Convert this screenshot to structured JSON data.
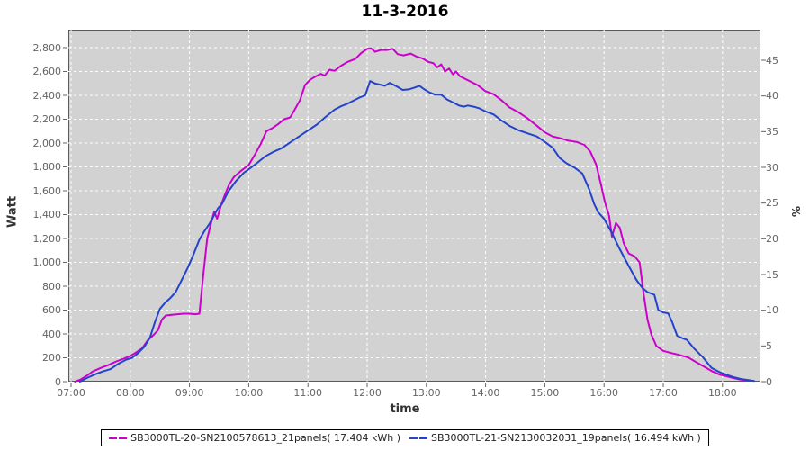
{
  "title": "11-3-2016",
  "axes": {
    "left": {
      "title": "Watt",
      "tick_values": [
        0,
        200,
        400,
        600,
        800,
        1000,
        1200,
        1400,
        1600,
        1800,
        2000,
        2200,
        2400,
        2600,
        2800
      ],
      "tick_labels": [
        "0",
        "200",
        "400",
        "600",
        "800",
        "1,000",
        "1,200",
        "1,400",
        "1,600",
        "1,800",
        "2,000",
        "2,200",
        "2,400",
        "2,600",
        "2,800"
      ]
    },
    "right": {
      "title": "%",
      "tick_values": [
        0,
        5,
        10,
        15,
        20,
        25,
        30,
        35,
        40,
        45
      ],
      "tick_labels": [
        "0",
        "5",
        "10",
        "15",
        "20",
        "25",
        "30",
        "35",
        "40",
        "45"
      ]
    },
    "x": {
      "title": "time",
      "tick_hours": [
        7,
        8,
        9,
        10,
        11,
        12,
        13,
        14,
        15,
        16,
        17,
        18
      ],
      "tick_labels": [
        "07:00",
        "08:00",
        "09:00",
        "10:00",
        "11:00",
        "12:00",
        "13:00",
        "14:00",
        "15:00",
        "16:00",
        "17:00",
        "18:00"
      ]
    }
  },
  "legend": {
    "entries": [
      {
        "label": "SB3000TL-20-SN2100578613_21panels( 17.404 kWh )",
        "color": "#cc00cc"
      },
      {
        "label": "SB3000TL-21-SN2130032031_19panels( 16.494 kWh )",
        "color": "#2343cb"
      }
    ]
  },
  "colors": {
    "plot_background": "#d2d2d2",
    "gridline": "#ffffff",
    "frame": "#5a5a5a",
    "tick_text": "#646464",
    "series_magenta": "#cc00cc",
    "series_blue": "#2343cb"
  },
  "chart_data": {
    "type": "line",
    "title": "11-3-2016",
    "xlabel": "time",
    "ylabel_left": "Watt",
    "ylabel_right": "%",
    "x_range_hours": [
      6.95,
      18.64
    ],
    "ylim_watt": [
      0,
      2950
    ],
    "ylim_percent": [
      0,
      49
    ],
    "grid": "white dashed on gray background",
    "legend_position": "bottom-center",
    "series": [
      {
        "name": "SB3000TL-20-SN2100578613_21panels( 17.404 kWh )",
        "color": "#cc00cc",
        "axis": "left",
        "energy_kwh": 17.404,
        "points": [
          [
            "07:04",
            0
          ],
          [
            "07:10",
            20
          ],
          [
            "07:16",
            50
          ],
          [
            "07:22",
            85
          ],
          [
            "07:30",
            115
          ],
          [
            "07:38",
            140
          ],
          [
            "07:46",
            170
          ],
          [
            "07:54",
            195
          ],
          [
            "08:00",
            215
          ],
          [
            "08:06",
            245
          ],
          [
            "08:12",
            280
          ],
          [
            "08:18",
            350
          ],
          [
            "08:24",
            395
          ],
          [
            "08:28",
            430
          ],
          [
            "08:32",
            520
          ],
          [
            "08:36",
            555
          ],
          [
            "08:42",
            560
          ],
          [
            "08:48",
            565
          ],
          [
            "08:54",
            570
          ],
          [
            "09:00",
            570
          ],
          [
            "09:06",
            565
          ],
          [
            "09:10",
            570
          ],
          [
            "09:14",
            900
          ],
          [
            "09:18",
            1200
          ],
          [
            "09:21",
            1300
          ],
          [
            "09:25",
            1425
          ],
          [
            "09:28",
            1365
          ],
          [
            "09:32",
            1480
          ],
          [
            "09:36",
            1570
          ],
          [
            "09:40",
            1650
          ],
          [
            "09:45",
            1715
          ],
          [
            "09:52",
            1765
          ],
          [
            "10:00",
            1815
          ],
          [
            "10:06",
            1900
          ],
          [
            "10:12",
            1990
          ],
          [
            "10:18",
            2100
          ],
          [
            "10:24",
            2125
          ],
          [
            "10:30",
            2160
          ],
          [
            "10:36",
            2200
          ],
          [
            "10:42",
            2215
          ],
          [
            "10:46",
            2270
          ],
          [
            "10:52",
            2360
          ],
          [
            "10:57",
            2485
          ],
          [
            "11:02",
            2530
          ],
          [
            "11:08",
            2560
          ],
          [
            "11:13",
            2580
          ],
          [
            "11:17",
            2565
          ],
          [
            "11:22",
            2615
          ],
          [
            "11:27",
            2605
          ],
          [
            "11:33",
            2645
          ],
          [
            "11:40",
            2680
          ],
          [
            "11:48",
            2705
          ],
          [
            "11:54",
            2755
          ],
          [
            "12:00",
            2790
          ],
          [
            "12:04",
            2795
          ],
          [
            "12:08",
            2765
          ],
          [
            "12:14",
            2780
          ],
          [
            "12:20",
            2780
          ],
          [
            "12:26",
            2790
          ],
          [
            "12:31",
            2745
          ],
          [
            "12:37",
            2735
          ],
          [
            "12:44",
            2750
          ],
          [
            "12:50",
            2725
          ],
          [
            "12:56",
            2710
          ],
          [
            "13:02",
            2680
          ],
          [
            "13:07",
            2670
          ],
          [
            "13:11",
            2635
          ],
          [
            "13:15",
            2660
          ],
          [
            "13:19",
            2600
          ],
          [
            "13:23",
            2625
          ],
          [
            "13:27",
            2575
          ],
          [
            "13:30",
            2600
          ],
          [
            "13:34",
            2560
          ],
          [
            "13:40",
            2535
          ],
          [
            "13:46",
            2510
          ],
          [
            "13:52",
            2485
          ],
          [
            "14:00",
            2435
          ],
          [
            "14:08",
            2410
          ],
          [
            "14:16",
            2360
          ],
          [
            "14:24",
            2300
          ],
          [
            "14:33",
            2260
          ],
          [
            "14:42",
            2210
          ],
          [
            "14:52",
            2145
          ],
          [
            "15:00",
            2090
          ],
          [
            "15:08",
            2055
          ],
          [
            "15:16",
            2040
          ],
          [
            "15:24",
            2020
          ],
          [
            "15:32",
            2010
          ],
          [
            "15:40",
            1985
          ],
          [
            "15:46",
            1930
          ],
          [
            "15:52",
            1820
          ],
          [
            "15:57",
            1650
          ],
          [
            "16:01",
            1500
          ],
          [
            "16:05",
            1395
          ],
          [
            "16:08",
            1215
          ],
          [
            "16:12",
            1330
          ],
          [
            "16:16",
            1290
          ],
          [
            "16:20",
            1160
          ],
          [
            "16:25",
            1075
          ],
          [
            "16:31",
            1050
          ],
          [
            "16:36",
            1000
          ],
          [
            "16:40",
            740
          ],
          [
            "16:44",
            520
          ],
          [
            "16:48",
            395
          ],
          [
            "16:53",
            300
          ],
          [
            "17:00",
            258
          ],
          [
            "17:08",
            240
          ],
          [
            "17:16",
            225
          ],
          [
            "17:26",
            200
          ],
          [
            "17:34",
            160
          ],
          [
            "17:42",
            122
          ],
          [
            "17:50",
            85
          ],
          [
            "17:57",
            60
          ],
          [
            "18:04",
            45
          ],
          [
            "18:11",
            30
          ],
          [
            "18:18",
            18
          ],
          [
            "18:26",
            8
          ]
        ]
      },
      {
        "name": "SB3000TL-21-SN2130032031_19panels( 16.494 kWh )",
        "color": "#2343cb",
        "axis": "left",
        "energy_kwh": 16.494,
        "points": [
          [
            "07:09",
            0
          ],
          [
            "07:16",
            30
          ],
          [
            "07:24",
            60
          ],
          [
            "07:32",
            85
          ],
          [
            "07:40",
            105
          ],
          [
            "07:48",
            150
          ],
          [
            "07:56",
            185
          ],
          [
            "08:02",
            200
          ],
          [
            "08:08",
            240
          ],
          [
            "08:14",
            290
          ],
          [
            "08:20",
            370
          ],
          [
            "08:25",
            500
          ],
          [
            "08:30",
            610
          ],
          [
            "08:35",
            660
          ],
          [
            "08:41",
            705
          ],
          [
            "08:46",
            750
          ],
          [
            "08:52",
            850
          ],
          [
            "08:58",
            950
          ],
          [
            "09:04",
            1065
          ],
          [
            "09:10",
            1190
          ],
          [
            "09:15",
            1260
          ],
          [
            "09:20",
            1320
          ],
          [
            "09:25",
            1395
          ],
          [
            "09:29",
            1455
          ],
          [
            "09:33",
            1490
          ],
          [
            "09:39",
            1590
          ],
          [
            "09:47",
            1680
          ],
          [
            "09:55",
            1750
          ],
          [
            "10:00",
            1780
          ],
          [
            "10:08",
            1830
          ],
          [
            "10:17",
            1890
          ],
          [
            "10:26",
            1930
          ],
          [
            "10:33",
            1955
          ],
          [
            "10:42",
            2005
          ],
          [
            "10:51",
            2055
          ],
          [
            "11:00",
            2105
          ],
          [
            "11:09",
            2155
          ],
          [
            "11:18",
            2220
          ],
          [
            "11:27",
            2280
          ],
          [
            "11:34",
            2310
          ],
          [
            "11:40",
            2330
          ],
          [
            "11:46",
            2355
          ],
          [
            "11:52",
            2380
          ],
          [
            "11:58",
            2400
          ],
          [
            "12:03",
            2520
          ],
          [
            "12:08",
            2500
          ],
          [
            "12:13",
            2490
          ],
          [
            "12:18",
            2480
          ],
          [
            "12:23",
            2505
          ],
          [
            "12:30",
            2475
          ],
          [
            "12:36",
            2445
          ],
          [
            "12:42",
            2450
          ],
          [
            "12:48",
            2465
          ],
          [
            "12:53",
            2480
          ],
          [
            "12:58",
            2450
          ],
          [
            "13:03",
            2425
          ],
          [
            "13:09",
            2405
          ],
          [
            "13:15",
            2405
          ],
          [
            "13:21",
            2365
          ],
          [
            "13:27",
            2340
          ],
          [
            "13:33",
            2315
          ],
          [
            "13:38",
            2305
          ],
          [
            "13:42",
            2315
          ],
          [
            "13:48",
            2305
          ],
          [
            "13:54",
            2290
          ],
          [
            "14:00",
            2265
          ],
          [
            "14:08",
            2240
          ],
          [
            "14:16",
            2190
          ],
          [
            "14:25",
            2140
          ],
          [
            "14:34",
            2105
          ],
          [
            "14:43",
            2080
          ],
          [
            "14:52",
            2055
          ],
          [
            "15:00",
            2010
          ],
          [
            "15:08",
            1960
          ],
          [
            "15:15",
            1875
          ],
          [
            "15:22",
            1830
          ],
          [
            "15:30",
            1795
          ],
          [
            "15:38",
            1745
          ],
          [
            "15:45",
            1610
          ],
          [
            "15:50",
            1490
          ],
          [
            "15:54",
            1420
          ],
          [
            "16:00",
            1365
          ],
          [
            "16:08",
            1245
          ],
          [
            "16:16",
            1110
          ],
          [
            "16:25",
            970
          ],
          [
            "16:33",
            850
          ],
          [
            "16:39",
            785
          ],
          [
            "16:44",
            750
          ],
          [
            "16:51",
            728
          ],
          [
            "16:55",
            600
          ],
          [
            "17:00",
            580
          ],
          [
            "17:05",
            572
          ],
          [
            "17:09",
            500
          ],
          [
            "17:14",
            385
          ],
          [
            "17:20",
            362
          ],
          [
            "17:24",
            350
          ],
          [
            "17:31",
            280
          ],
          [
            "17:40",
            205
          ],
          [
            "17:49",
            115
          ],
          [
            "17:57",
            80
          ],
          [
            "18:04",
            58
          ],
          [
            "18:11",
            38
          ],
          [
            "18:19",
            22
          ],
          [
            "18:27",
            12
          ],
          [
            "18:32",
            6
          ]
        ]
      }
    ]
  }
}
